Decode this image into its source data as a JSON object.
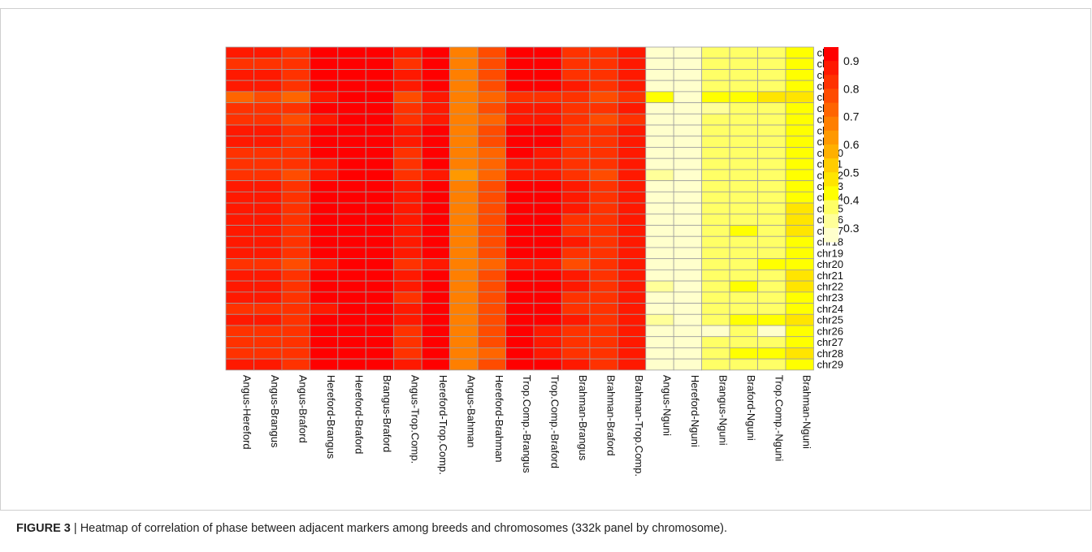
{
  "caption": {
    "label": "FIGURE 3",
    "separator": " | ",
    "text": "Heatmap of correlation of phase between adjacent markers among breeds and chromosomes (332k panel by chromosome)."
  },
  "chart_data": {
    "type": "heatmap",
    "columns": [
      "Angus-Hereford",
      "Angus-Brangus",
      "Angus-Braford",
      "Hereford-Brangus",
      "Hereford-Braford",
      "Brangus-Braford",
      "Angus-Trop.Comp.",
      "Hereford-Trop.Comp.",
      "Angus-Bahman",
      "Hereford-Brahman",
      "Trop.Comp.-Brangus",
      "Trop.Comp.-Braford",
      "Brahman-Brangus",
      "Brahman-Braford",
      "Brahman-Trop.Comp.",
      "Angus-Nguni",
      "Hereford-Nguni",
      "Brangus-Nguni",
      "Braford-Nguni",
      "Trop.Comp.-Nguni",
      "Brahman-Nguni"
    ],
    "rows": [
      "chr1",
      "chr2",
      "chr3",
      "chr4",
      "chr5",
      "chr6",
      "chr7",
      "chr8",
      "chr9",
      "chr10",
      "chr11",
      "chr12",
      "chr13",
      "chr14",
      "chr15",
      "chr16",
      "chr17",
      "chr18",
      "chr19",
      "chr20",
      "chr21",
      "chr22",
      "chr23",
      "chr24",
      "chr25",
      "chr26",
      "chr27",
      "chr28",
      "chr29"
    ],
    "legend": {
      "ticks": [
        0.9,
        0.8,
        0.7,
        0.6,
        0.5,
        0.4,
        0.3
      ],
      "min": 0.25,
      "max": 0.95,
      "placement": "right"
    },
    "colors": [
      "#ffffcc",
      "#ffff99",
      "#ffff66",
      "#ffff00",
      "#ffe500",
      "#ffcc00",
      "#ffb000",
      "#ff9900",
      "#ff7f00",
      "#ff6500",
      "#ff4c00",
      "#ff3200",
      "#ff1900",
      "#ff0000"
    ],
    "values": [
      [
        0.85,
        0.85,
        0.82,
        0.9,
        0.94,
        0.94,
        0.85,
        0.9,
        0.68,
        0.76,
        0.9,
        0.9,
        0.83,
        0.82,
        0.86,
        0.27,
        0.27,
        0.38,
        0.38,
        0.38,
        0.4
      ],
      [
        0.84,
        0.84,
        0.82,
        0.9,
        0.94,
        0.94,
        0.84,
        0.9,
        0.67,
        0.75,
        0.9,
        0.9,
        0.84,
        0.82,
        0.86,
        0.28,
        0.27,
        0.38,
        0.38,
        0.38,
        0.42
      ],
      [
        0.86,
        0.85,
        0.83,
        0.9,
        0.94,
        0.94,
        0.85,
        0.9,
        0.67,
        0.76,
        0.91,
        0.9,
        0.84,
        0.82,
        0.88,
        0.28,
        0.27,
        0.38,
        0.38,
        0.38,
        0.42
      ],
      [
        0.88,
        0.87,
        0.84,
        0.91,
        0.94,
        0.94,
        0.87,
        0.92,
        0.68,
        0.77,
        0.92,
        0.91,
        0.85,
        0.83,
        0.88,
        0.28,
        0.27,
        0.38,
        0.38,
        0.38,
        0.41
      ],
      [
        0.74,
        0.76,
        0.73,
        0.87,
        0.94,
        0.94,
        0.78,
        0.86,
        0.66,
        0.7,
        0.84,
        0.84,
        0.8,
        0.78,
        0.82,
        0.42,
        0.3,
        0.42,
        0.42,
        0.45,
        0.47
      ],
      [
        0.82,
        0.83,
        0.8,
        0.9,
        0.94,
        0.94,
        0.83,
        0.89,
        0.67,
        0.75,
        0.89,
        0.88,
        0.83,
        0.8,
        0.85,
        0.28,
        0.27,
        0.32,
        0.38,
        0.38,
        0.41
      ],
      [
        0.8,
        0.8,
        0.78,
        0.89,
        0.94,
        0.94,
        0.82,
        0.89,
        0.66,
        0.74,
        0.89,
        0.88,
        0.82,
        0.77,
        0.84,
        0.28,
        0.27,
        0.38,
        0.38,
        0.38,
        0.41
      ],
      [
        0.86,
        0.86,
        0.83,
        0.9,
        0.94,
        0.94,
        0.86,
        0.91,
        0.66,
        0.75,
        0.9,
        0.9,
        0.84,
        0.82,
        0.86,
        0.28,
        0.27,
        0.38,
        0.38,
        0.38,
        0.44
      ],
      [
        0.86,
        0.85,
        0.82,
        0.9,
        0.94,
        0.94,
        0.85,
        0.91,
        0.65,
        0.76,
        0.9,
        0.9,
        0.84,
        0.82,
        0.86,
        0.28,
        0.27,
        0.38,
        0.38,
        0.38,
        0.44
      ],
      [
        0.84,
        0.84,
        0.8,
        0.9,
        0.94,
        0.94,
        0.84,
        0.9,
        0.65,
        0.74,
        0.9,
        0.89,
        0.83,
        0.8,
        0.86,
        0.28,
        0.27,
        0.38,
        0.38,
        0.38,
        0.44
      ],
      [
        0.83,
        0.83,
        0.8,
        0.89,
        0.94,
        0.94,
        0.83,
        0.9,
        0.65,
        0.74,
        0.89,
        0.89,
        0.83,
        0.8,
        0.86,
        0.29,
        0.27,
        0.38,
        0.38,
        0.38,
        0.44
      ],
      [
        0.8,
        0.8,
        0.79,
        0.89,
        0.94,
        0.94,
        0.82,
        0.89,
        0.64,
        0.7,
        0.88,
        0.88,
        0.8,
        0.79,
        0.86,
        0.34,
        0.27,
        0.38,
        0.38,
        0.38,
        0.44
      ],
      [
        0.87,
        0.86,
        0.84,
        0.91,
        0.94,
        0.94,
        0.87,
        0.92,
        0.66,
        0.76,
        0.92,
        0.92,
        0.85,
        0.83,
        0.88,
        0.28,
        0.27,
        0.38,
        0.38,
        0.38,
        0.44
      ],
      [
        0.87,
        0.86,
        0.84,
        0.91,
        0.94,
        0.94,
        0.86,
        0.92,
        0.65,
        0.76,
        0.92,
        0.91,
        0.85,
        0.83,
        0.88,
        0.28,
        0.27,
        0.38,
        0.38,
        0.38,
        0.44
      ],
      [
        0.86,
        0.86,
        0.83,
        0.91,
        0.94,
        0.94,
        0.86,
        0.92,
        0.66,
        0.76,
        0.91,
        0.91,
        0.85,
        0.83,
        0.88,
        0.28,
        0.3,
        0.38,
        0.38,
        0.38,
        0.45
      ],
      [
        0.85,
        0.85,
        0.82,
        0.9,
        0.94,
        0.94,
        0.85,
        0.91,
        0.67,
        0.77,
        0.91,
        0.91,
        0.84,
        0.82,
        0.87,
        0.28,
        0.3,
        0.38,
        0.38,
        0.38,
        0.45
      ],
      [
        0.86,
        0.86,
        0.83,
        0.9,
        0.94,
        0.94,
        0.86,
        0.91,
        0.67,
        0.77,
        0.91,
        0.9,
        0.84,
        0.82,
        0.87,
        0.28,
        0.3,
        0.38,
        0.42,
        0.38,
        0.45
      ],
      [
        0.86,
        0.86,
        0.83,
        0.91,
        0.94,
        0.94,
        0.86,
        0.92,
        0.67,
        0.76,
        0.91,
        0.91,
        0.85,
        0.82,
        0.87,
        0.28,
        0.27,
        0.38,
        0.38,
        0.38,
        0.44
      ],
      [
        0.85,
        0.85,
        0.82,
        0.9,
        0.94,
        0.94,
        0.85,
        0.91,
        0.67,
        0.76,
        0.91,
        0.9,
        0.83,
        0.82,
        0.86,
        0.28,
        0.3,
        0.38,
        0.38,
        0.38,
        0.44
      ],
      [
        0.8,
        0.82,
        0.78,
        0.89,
        0.94,
        0.94,
        0.83,
        0.89,
        0.66,
        0.74,
        0.89,
        0.88,
        0.79,
        0.82,
        0.86,
        0.28,
        0.3,
        0.38,
        0.38,
        0.42,
        0.44
      ],
      [
        0.86,
        0.86,
        0.83,
        0.91,
        0.94,
        0.94,
        0.86,
        0.92,
        0.66,
        0.77,
        0.91,
        0.91,
        0.85,
        0.83,
        0.88,
        0.28,
        0.3,
        0.38,
        0.38,
        0.38,
        0.45
      ],
      [
        0.87,
        0.86,
        0.83,
        0.91,
        0.94,
        0.94,
        0.86,
        0.92,
        0.67,
        0.77,
        0.92,
        0.91,
        0.85,
        0.83,
        0.88,
        0.33,
        0.3,
        0.38,
        0.42,
        0.38,
        0.45
      ],
      [
        0.86,
        0.86,
        0.81,
        0.9,
        0.94,
        0.94,
        0.82,
        0.91,
        0.66,
        0.76,
        0.91,
        0.9,
        0.84,
        0.82,
        0.87,
        0.28,
        0.3,
        0.38,
        0.38,
        0.38,
        0.44
      ],
      [
        0.84,
        0.84,
        0.82,
        0.88,
        0.94,
        0.94,
        0.85,
        0.9,
        0.66,
        0.76,
        0.9,
        0.9,
        0.84,
        0.82,
        0.86,
        0.28,
        0.27,
        0.38,
        0.38,
        0.38,
        0.44
      ],
      [
        0.86,
        0.86,
        0.83,
        0.91,
        0.94,
        0.94,
        0.86,
        0.92,
        0.67,
        0.77,
        0.92,
        0.91,
        0.85,
        0.83,
        0.88,
        0.34,
        0.3,
        0.38,
        0.42,
        0.42,
        0.45
      ],
      [
        0.83,
        0.84,
        0.8,
        0.9,
        0.94,
        0.94,
        0.84,
        0.9,
        0.66,
        0.75,
        0.9,
        0.89,
        0.83,
        0.81,
        0.87,
        0.28,
        0.27,
        0.3,
        0.38,
        0.3,
        0.44
      ],
      [
        0.84,
        0.84,
        0.82,
        0.9,
        0.94,
        0.94,
        0.84,
        0.91,
        0.65,
        0.75,
        0.9,
        0.89,
        0.83,
        0.81,
        0.86,
        0.28,
        0.27,
        0.38,
        0.38,
        0.38,
        0.44
      ],
      [
        0.84,
        0.84,
        0.82,
        0.9,
        0.94,
        0.94,
        0.84,
        0.91,
        0.65,
        0.73,
        0.9,
        0.89,
        0.83,
        0.81,
        0.86,
        0.28,
        0.3,
        0.38,
        0.42,
        0.42,
        0.45
      ],
      [
        0.86,
        0.86,
        0.83,
        0.91,
        0.94,
        0.94,
        0.86,
        0.92,
        0.67,
        0.76,
        0.91,
        0.91,
        0.85,
        0.83,
        0.88,
        0.28,
        0.3,
        0.38,
        0.38,
        0.38,
        0.44
      ]
    ]
  }
}
